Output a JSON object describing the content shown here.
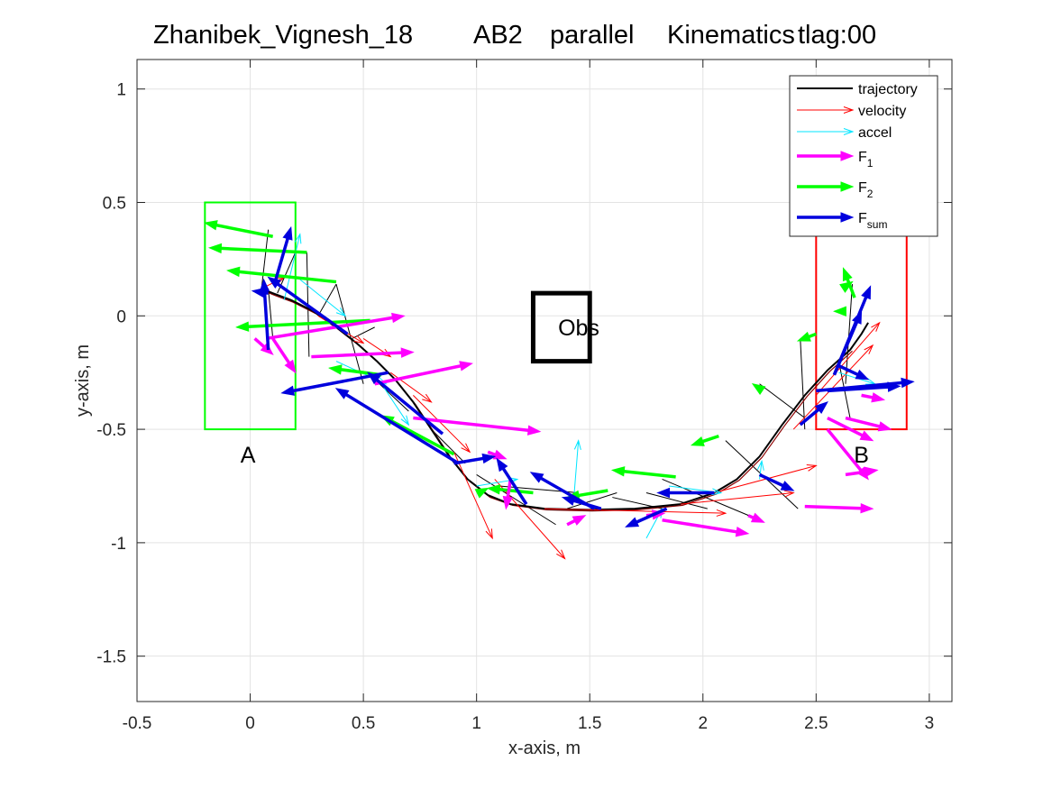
{
  "chart_data": {
    "type": "line",
    "title": {
      "name": "Zhanibek_Vignesh_18",
      "pattern": "AB2",
      "mode": "parallel",
      "kind": "Kinematics",
      "tlag": "tlag:00"
    },
    "xlabel": "x-axis, m",
    "ylabel": "y-axis, m",
    "xlim": [
      -0.5,
      3.1
    ],
    "ylim": [
      -1.7,
      1.13
    ],
    "xticks": [
      -0.5,
      0,
      0.5,
      1,
      1.5,
      2,
      2.5,
      3
    ],
    "xtick_labels": [
      "-0.5",
      "0",
      "0.5",
      "1",
      "1.5",
      "2",
      "2.5",
      "3"
    ],
    "yticks": [
      -1.5,
      -1,
      -0.5,
      0,
      0.5,
      1
    ],
    "ytick_labels": [
      "-1.5",
      "-1",
      "-0.5",
      "0",
      "0.5",
      "1"
    ],
    "grid": true,
    "legend_position": "top-right",
    "legend": [
      {
        "key": "trajectory",
        "label": "trajectory",
        "sub": "",
        "color": "#000000",
        "style": "line"
      },
      {
        "key": "velocity",
        "label": "velocity",
        "sub": "",
        "color": "#ff0000",
        "style": "thin-arrow"
      },
      {
        "key": "accel",
        "label": "accel",
        "sub": "",
        "color": "#00e5ff",
        "style": "thin-arrow"
      },
      {
        "key": "F1",
        "label": "F",
        "sub": "1",
        "color": "#ff00ff",
        "style": "thick-arrow"
      },
      {
        "key": "F2",
        "label": "F",
        "sub": "2",
        "color": "#00ff00",
        "style": "thick-arrow"
      },
      {
        "key": "Fsum",
        "label": "F",
        "sub": "sum",
        "color": "#0000dd",
        "style": "thick-arrow"
      }
    ],
    "regions": [
      {
        "label": "A",
        "x0": -0.2,
        "x1": 0.2,
        "y0": -0.5,
        "y1": 0.5,
        "color": "#00ff00",
        "label_x": -0.01,
        "label_y": -0.61
      },
      {
        "label": "B",
        "x0": 2.5,
        "x1": 2.9,
        "y0": -0.5,
        "y1": 0.5,
        "color": "#ff0000",
        "label_x": 2.7,
        "label_y": -0.61
      },
      {
        "label": "Obs",
        "x0": 1.25,
        "x1": 1.5,
        "y0": -0.2,
        "y1": 0.1,
        "color": "#000000",
        "label_x": 1.36,
        "label_y": -0.05
      }
    ],
    "trajectory": {
      "x": [
        0.05,
        0.1,
        0.18,
        0.28,
        0.38,
        0.47,
        0.56,
        0.64,
        0.72,
        0.8,
        0.88,
        0.96,
        1.05,
        1.15,
        1.3,
        1.5,
        1.7,
        1.9,
        2.05,
        2.15,
        2.25,
        2.35,
        2.45,
        2.55,
        2.65,
        2.7,
        2.73
      ],
      "y": [
        0.12,
        0.1,
        0.07,
        0.02,
        -0.05,
        -0.12,
        -0.2,
        -0.28,
        -0.38,
        -0.5,
        -0.62,
        -0.72,
        -0.79,
        -0.83,
        -0.85,
        -0.855,
        -0.85,
        -0.83,
        -0.78,
        -0.72,
        -0.62,
        -0.48,
        -0.35,
        -0.24,
        -0.15,
        -0.08,
        -0.03
      ]
    },
    "trajectory_shadow": {
      "x": [
        0.06,
        0.11,
        0.19,
        0.29,
        0.39,
        0.48,
        0.57,
        0.65,
        0.73,
        0.81,
        0.89,
        0.97,
        1.06,
        1.16,
        1.31,
        1.51,
        1.71,
        1.91,
        2.06,
        2.16,
        2.26,
        2.36,
        2.46,
        2.56,
        2.66
      ],
      "y": [
        0.11,
        0.09,
        0.06,
        0.01,
        -0.06,
        -0.13,
        -0.21,
        -0.29,
        -0.39,
        -0.51,
        -0.63,
        -0.73,
        -0.8,
        -0.835,
        -0.855,
        -0.86,
        -0.855,
        -0.835,
        -0.785,
        -0.725,
        -0.625,
        -0.485,
        -0.355,
        -0.245,
        -0.155
      ]
    },
    "connectors": [
      [
        [
          0.05,
          0.12
        ],
        [
          0.08,
          0.38
        ]
      ],
      [
        [
          0.08,
          0.12
        ],
        [
          0.1,
          -0.1
        ]
      ],
      [
        [
          0.12,
          0.1
        ],
        [
          0.2,
          0.28
        ]
      ],
      [
        [
          0.2,
          0.28
        ],
        [
          0.25,
          0.28
        ]
      ],
      [
        [
          0.25,
          0.28
        ],
        [
          0.26,
          -0.18
        ]
      ],
      [
        [
          0.3,
          0.0
        ],
        [
          0.38,
          0.14
        ]
      ],
      [
        [
          0.38,
          0.14
        ],
        [
          0.5,
          -0.3
        ]
      ],
      [
        [
          0.45,
          -0.1
        ],
        [
          0.55,
          -0.05
        ]
      ],
      [
        [
          0.55,
          -0.28
        ],
        [
          0.7,
          -0.42
        ]
      ],
      [
        [
          0.8,
          -0.5
        ],
        [
          0.95,
          -0.65
        ]
      ],
      [
        [
          1.0,
          -0.7
        ],
        [
          1.35,
          -0.92
        ]
      ],
      [
        [
          1.1,
          -0.75
        ],
        [
          1.45,
          -0.78
        ]
      ],
      [
        [
          1.4,
          -0.85
        ],
        [
          1.62,
          -0.78
        ]
      ],
      [
        [
          1.6,
          -0.8
        ],
        [
          1.82,
          -0.85
        ]
      ],
      [
        [
          1.75,
          -0.78
        ],
        [
          2.02,
          -0.85
        ]
      ],
      [
        [
          1.82,
          -0.72
        ],
        [
          2.25,
          -0.9
        ]
      ],
      [
        [
          2.1,
          -0.55
        ],
        [
          2.42,
          -0.85
        ]
      ],
      [
        [
          2.25,
          -0.3
        ],
        [
          2.45,
          -0.45
        ]
      ],
      [
        [
          2.45,
          -0.5
        ],
        [
          2.43,
          -0.1
        ]
      ],
      [
        [
          2.6,
          -0.2
        ],
        [
          2.65,
          -0.45
        ]
      ],
      [
        [
          2.63,
          -0.3
        ],
        [
          2.66,
          0.14
        ]
      ]
    ],
    "vectors": {
      "velocity": [
        [
          [
            0.05,
            0.12
          ],
          [
            0.15,
            0.17
          ]
        ],
        [
          [
            0.3,
            0.0
          ],
          [
            0.5,
            -0.12
          ]
        ],
        [
          [
            0.5,
            -0.1
          ],
          [
            0.62,
            -0.18
          ]
        ],
        [
          [
            0.62,
            -0.25
          ],
          [
            0.8,
            -0.38
          ]
        ],
        [
          [
            0.72,
            -0.35
          ],
          [
            0.97,
            -0.6
          ]
        ],
        [
          [
            0.9,
            -0.6
          ],
          [
            1.07,
            -0.98
          ]
        ],
        [
          [
            1.08,
            -0.72
          ],
          [
            1.39,
            -1.07
          ]
        ],
        [
          [
            1.3,
            -0.85
          ],
          [
            2.1,
            -0.87
          ]
        ],
        [
          [
            1.9,
            -0.83
          ],
          [
            2.4,
            -0.78
          ]
        ],
        [
          [
            2.05,
            -0.78
          ],
          [
            2.5,
            -0.66
          ]
        ],
        [
          [
            2.4,
            -0.5
          ],
          [
            2.75,
            -0.13
          ]
        ],
        [
          [
            2.5,
            -0.35
          ],
          [
            2.78,
            -0.03
          ]
        ]
      ],
      "accel": [
        [
          [
            0.15,
            0.07
          ],
          [
            0.22,
            0.36
          ]
        ],
        [
          [
            0.22,
            0.16
          ],
          [
            0.42,
            0.0
          ]
        ],
        [
          [
            0.38,
            -0.2
          ],
          [
            0.6,
            -0.3
          ]
        ],
        [
          [
            0.58,
            -0.3
          ],
          [
            0.7,
            -0.48
          ]
        ],
        [
          [
            1.0,
            -0.75
          ],
          [
            1.18,
            -0.72
          ]
        ],
        [
          [
            1.43,
            -0.8
          ],
          [
            1.45,
            -0.55
          ]
        ],
        [
          [
            1.75,
            -0.98
          ],
          [
            1.82,
            -0.85
          ]
        ],
        [
          [
            1.85,
            -0.75
          ],
          [
            2.08,
            -0.78
          ]
        ],
        [
          [
            2.25,
            -0.72
          ],
          [
            2.26,
            -0.64
          ]
        ],
        [
          [
            2.6,
            -0.25
          ],
          [
            2.76,
            -0.3
          ]
        ]
      ],
      "F1": [
        [
          [
            0.02,
            -0.1
          ],
          [
            0.1,
            -0.17
          ]
        ],
        [
          [
            0.07,
            -0.1
          ],
          [
            0.68,
            0.0
          ]
        ],
        [
          [
            0.1,
            -0.1
          ],
          [
            0.2,
            -0.25
          ]
        ],
        [
          [
            0.27,
            -0.18
          ],
          [
            0.72,
            -0.16
          ]
        ],
        [
          [
            0.55,
            -0.3
          ],
          [
            0.98,
            -0.21
          ]
        ],
        [
          [
            0.72,
            -0.45
          ],
          [
            1.28,
            -0.51
          ]
        ],
        [
          [
            1.05,
            -0.6
          ],
          [
            1.13,
            -0.63
          ]
        ],
        [
          [
            1.15,
            -0.72
          ],
          [
            1.13,
            -0.85
          ]
        ],
        [
          [
            1.4,
            -0.92
          ],
          [
            1.48,
            -0.88
          ]
        ],
        [
          [
            1.75,
            -0.88
          ],
          [
            1.83,
            -0.87
          ]
        ],
        [
          [
            1.82,
            -0.9
          ],
          [
            2.2,
            -0.96
          ]
        ],
        [
          [
            2.2,
            -0.88
          ],
          [
            2.27,
            -0.91
          ]
        ],
        [
          [
            2.45,
            -0.84
          ],
          [
            2.75,
            -0.85
          ]
        ],
        [
          [
            2.55,
            -0.5
          ],
          [
            2.73,
            -0.72
          ]
        ],
        [
          [
            2.63,
            -0.7
          ],
          [
            2.77,
            -0.68
          ]
        ],
        [
          [
            2.55,
            -0.45
          ],
          [
            2.75,
            -0.55
          ]
        ],
        [
          [
            2.7,
            -0.35
          ],
          [
            2.8,
            -0.37
          ]
        ],
        [
          [
            2.63,
            -0.45
          ],
          [
            2.83,
            -0.5
          ]
        ]
      ],
      "F2": [
        [
          [
            0.1,
            0.35
          ],
          [
            -0.2,
            0.41
          ]
        ],
        [
          [
            0.25,
            0.28
          ],
          [
            -0.18,
            0.3
          ]
        ],
        [
          [
            0.38,
            0.15
          ],
          [
            -0.1,
            0.2
          ]
        ],
        [
          [
            0.53,
            -0.02
          ],
          [
            -0.06,
            -0.05
          ]
        ],
        [
          [
            0.58,
            -0.26
          ],
          [
            0.35,
            -0.23
          ]
        ],
        [
          [
            0.9,
            -0.61
          ],
          [
            0.58,
            -0.44
          ]
        ],
        [
          [
            1.03,
            -0.77
          ],
          [
            1.05,
            -0.76
          ]
        ],
        [
          [
            1.25,
            -0.78
          ],
          [
            1.05,
            -0.76
          ]
        ],
        [
          [
            1.58,
            -0.77
          ],
          [
            1.4,
            -0.8
          ]
        ],
        [
          [
            1.88,
            -0.71
          ],
          [
            1.6,
            -0.68
          ]
        ],
        [
          [
            2.07,
            -0.53
          ],
          [
            1.95,
            -0.57
          ]
        ],
        [
          [
            2.25,
            -0.32
          ],
          [
            2.22,
            -0.3
          ]
        ],
        [
          [
            2.5,
            -0.08
          ],
          [
            2.42,
            -0.11
          ]
        ],
        [
          [
            2.6,
            0.02
          ],
          [
            2.58,
            0.02
          ]
        ],
        [
          [
            2.67,
            0.08
          ],
          [
            2.62,
            0.21
          ]
        ],
        [
          [
            2.63,
            0.13
          ],
          [
            2.66,
            0.15
          ]
        ]
      ],
      "Fsum": [
        [
          [
            0.08,
            -0.15
          ],
          [
            0.06,
            0.16
          ]
        ],
        [
          [
            0.11,
            0.15
          ],
          [
            0.18,
            0.39
          ]
        ],
        [
          [
            0.08,
            0.1
          ],
          [
            0.01,
            0.11
          ]
        ],
        [
          [
            0.43,
            -0.08
          ],
          [
            0.08,
            0.17
          ]
        ],
        [
          [
            0.61,
            -0.25
          ],
          [
            0.14,
            -0.34
          ]
        ],
        [
          [
            0.92,
            -0.65
          ],
          [
            0.38,
            -0.32
          ]
        ],
        [
          [
            0.9,
            -0.65
          ],
          [
            1.08,
            -0.62
          ]
        ],
        [
          [
            0.85,
            -0.52
          ],
          [
            0.52,
            -0.25
          ]
        ],
        [
          [
            1.22,
            -0.83
          ],
          [
            1.09,
            -0.63
          ]
        ],
        [
          [
            1.52,
            -0.85
          ],
          [
            1.24,
            -0.69
          ]
        ],
        [
          [
            1.55,
            -0.85
          ],
          [
            1.38,
            -0.8
          ]
        ],
        [
          [
            1.84,
            -0.85
          ],
          [
            1.66,
            -0.93
          ]
        ],
        [
          [
            2.05,
            -0.78
          ],
          [
            1.8,
            -0.78
          ]
        ],
        [
          [
            2.25,
            -0.7
          ],
          [
            2.4,
            -0.77
          ]
        ],
        [
          [
            2.43,
            -0.48
          ],
          [
            2.55,
            -0.38
          ]
        ],
        [
          [
            2.5,
            -0.33
          ],
          [
            2.93,
            -0.29
          ]
        ],
        [
          [
            2.55,
            -0.33
          ],
          [
            2.87,
            -0.31
          ]
        ],
        [
          [
            2.6,
            -0.22
          ],
          [
            2.73,
            -0.28
          ]
        ],
        [
          [
            2.58,
            -0.26
          ],
          [
            2.74,
            0.13
          ]
        ],
        [
          [
            2.58,
            -0.26
          ],
          [
            2.7,
            0.02
          ]
        ]
      ]
    }
  }
}
